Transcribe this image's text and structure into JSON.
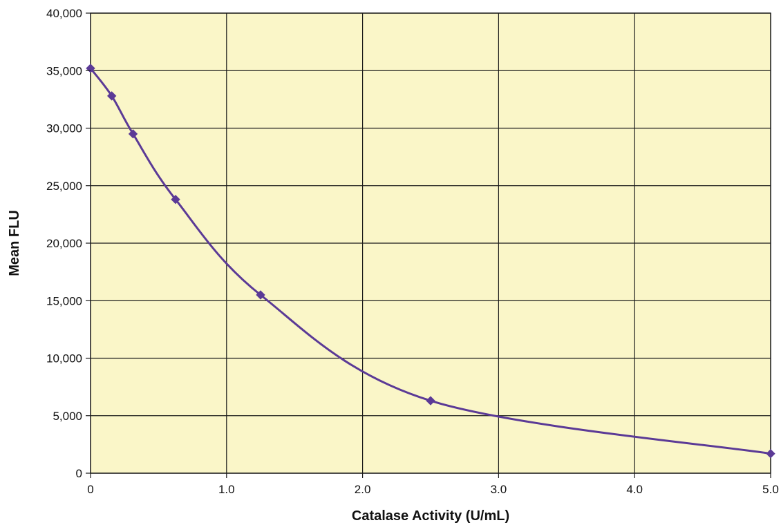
{
  "chart_data": {
    "type": "line",
    "title": "",
    "xlabel": "Catalase Activity (U/mL)",
    "ylabel": "Mean FLU",
    "xlim": [
      0,
      5
    ],
    "ylim": [
      0,
      40000
    ],
    "x_ticks": [
      0,
      1,
      2,
      3,
      4,
      5
    ],
    "x_tick_labels": [
      "0",
      "1.0",
      "2.0",
      "3.0",
      "4.0",
      "5.0"
    ],
    "y_ticks": [
      0,
      5000,
      10000,
      15000,
      20000,
      25000,
      30000,
      35000,
      40000
    ],
    "y_tick_labels": [
      "0",
      "5,000",
      "10,000",
      "15,000",
      "20,000",
      "25,000",
      "30,000",
      "35,000",
      "40,000"
    ],
    "grid": true,
    "smooth": true,
    "marker": "diamond",
    "colors": {
      "plot_background": "#faf6c8",
      "grid": "#1a1a1a",
      "series": "#5b3a96"
    },
    "series": [
      {
        "x": [
          0,
          0.156,
          0.3125,
          0.625,
          1.25,
          2.5,
          5.0
        ],
        "y": [
          35200,
          32800,
          29500,
          23800,
          15500,
          6300,
          1700
        ]
      }
    ]
  }
}
